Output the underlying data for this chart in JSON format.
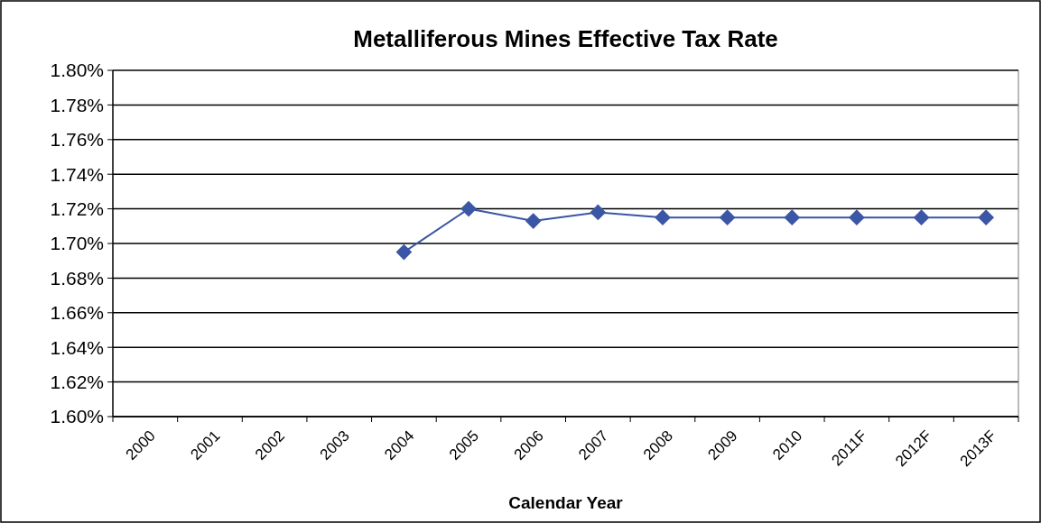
{
  "chart_data": {
    "type": "line",
    "title": "Metalliferous Mines Effective Tax Rate",
    "xlabel": "Calendar Year",
    "categories": [
      "2000",
      "2001",
      "2002",
      "2003",
      "2004",
      "2005",
      "2006",
      "2007",
      "2008",
      "2009",
      "2010",
      "2011F",
      "2012F",
      "2013F"
    ],
    "series": [
      {
        "color": "#3a56a5",
        "values": [
          null,
          null,
          null,
          null,
          1.695,
          1.72,
          1.713,
          1.718,
          1.715,
          1.715,
          1.715,
          1.715,
          1.715,
          1.715
        ]
      }
    ],
    "ylim": [
      1.6,
      1.8
    ],
    "yticks": [
      {
        "value": 1.6,
        "label": "1.60%"
      },
      {
        "value": 1.62,
        "label": "1.62%"
      },
      {
        "value": 1.64,
        "label": "1.64%"
      },
      {
        "value": 1.66,
        "label": "1.66%"
      },
      {
        "value": 1.68,
        "label": "1.68%"
      },
      {
        "value": 1.7,
        "label": "1.70%"
      },
      {
        "value": 1.72,
        "label": "1.72%"
      },
      {
        "value": 1.74,
        "label": "1.74%"
      },
      {
        "value": 1.76,
        "label": "1.76%"
      },
      {
        "value": 1.78,
        "label": "1.78%"
      },
      {
        "value": 1.8,
        "label": "1.80%"
      }
    ],
    "grid": "y",
    "marker": "diamond"
  }
}
